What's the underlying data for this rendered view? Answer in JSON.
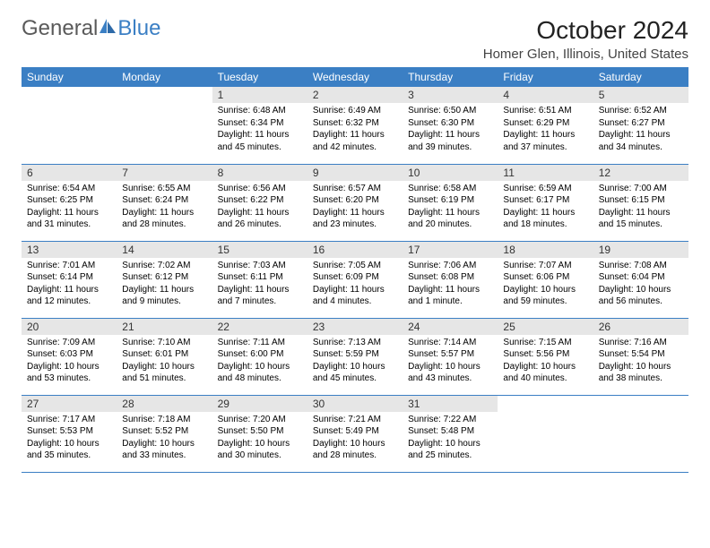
{
  "logo": {
    "text_gray": "General",
    "text_blue": "Blue"
  },
  "title": "October 2024",
  "location": "Homer Glen, Illinois, United States",
  "colors": {
    "header_bg": "#3b7fc4",
    "header_text": "#ffffff",
    "daynum_bg": "#e6e6e6",
    "cell_border": "#3b7fc4",
    "logo_gray": "#5a5a5a",
    "logo_blue": "#3b7fc4"
  },
  "day_headers": [
    "Sunday",
    "Monday",
    "Tuesday",
    "Wednesday",
    "Thursday",
    "Friday",
    "Saturday"
  ],
  "weeks": [
    [
      {
        "n": "",
        "sr": "",
        "ss": "",
        "dl": ""
      },
      {
        "n": "",
        "sr": "",
        "ss": "",
        "dl": ""
      },
      {
        "n": "1",
        "sr": "Sunrise: 6:48 AM",
        "ss": "Sunset: 6:34 PM",
        "dl": "Daylight: 11 hours and 45 minutes."
      },
      {
        "n": "2",
        "sr": "Sunrise: 6:49 AM",
        "ss": "Sunset: 6:32 PM",
        "dl": "Daylight: 11 hours and 42 minutes."
      },
      {
        "n": "3",
        "sr": "Sunrise: 6:50 AM",
        "ss": "Sunset: 6:30 PM",
        "dl": "Daylight: 11 hours and 39 minutes."
      },
      {
        "n": "4",
        "sr": "Sunrise: 6:51 AM",
        "ss": "Sunset: 6:29 PM",
        "dl": "Daylight: 11 hours and 37 minutes."
      },
      {
        "n": "5",
        "sr": "Sunrise: 6:52 AM",
        "ss": "Sunset: 6:27 PM",
        "dl": "Daylight: 11 hours and 34 minutes."
      }
    ],
    [
      {
        "n": "6",
        "sr": "Sunrise: 6:54 AM",
        "ss": "Sunset: 6:25 PM",
        "dl": "Daylight: 11 hours and 31 minutes."
      },
      {
        "n": "7",
        "sr": "Sunrise: 6:55 AM",
        "ss": "Sunset: 6:24 PM",
        "dl": "Daylight: 11 hours and 28 minutes."
      },
      {
        "n": "8",
        "sr": "Sunrise: 6:56 AM",
        "ss": "Sunset: 6:22 PM",
        "dl": "Daylight: 11 hours and 26 minutes."
      },
      {
        "n": "9",
        "sr": "Sunrise: 6:57 AM",
        "ss": "Sunset: 6:20 PM",
        "dl": "Daylight: 11 hours and 23 minutes."
      },
      {
        "n": "10",
        "sr": "Sunrise: 6:58 AM",
        "ss": "Sunset: 6:19 PM",
        "dl": "Daylight: 11 hours and 20 minutes."
      },
      {
        "n": "11",
        "sr": "Sunrise: 6:59 AM",
        "ss": "Sunset: 6:17 PM",
        "dl": "Daylight: 11 hours and 18 minutes."
      },
      {
        "n": "12",
        "sr": "Sunrise: 7:00 AM",
        "ss": "Sunset: 6:15 PM",
        "dl": "Daylight: 11 hours and 15 minutes."
      }
    ],
    [
      {
        "n": "13",
        "sr": "Sunrise: 7:01 AM",
        "ss": "Sunset: 6:14 PM",
        "dl": "Daylight: 11 hours and 12 minutes."
      },
      {
        "n": "14",
        "sr": "Sunrise: 7:02 AM",
        "ss": "Sunset: 6:12 PM",
        "dl": "Daylight: 11 hours and 9 minutes."
      },
      {
        "n": "15",
        "sr": "Sunrise: 7:03 AM",
        "ss": "Sunset: 6:11 PM",
        "dl": "Daylight: 11 hours and 7 minutes."
      },
      {
        "n": "16",
        "sr": "Sunrise: 7:05 AM",
        "ss": "Sunset: 6:09 PM",
        "dl": "Daylight: 11 hours and 4 minutes."
      },
      {
        "n": "17",
        "sr": "Sunrise: 7:06 AM",
        "ss": "Sunset: 6:08 PM",
        "dl": "Daylight: 11 hours and 1 minute."
      },
      {
        "n": "18",
        "sr": "Sunrise: 7:07 AM",
        "ss": "Sunset: 6:06 PM",
        "dl": "Daylight: 10 hours and 59 minutes."
      },
      {
        "n": "19",
        "sr": "Sunrise: 7:08 AM",
        "ss": "Sunset: 6:04 PM",
        "dl": "Daylight: 10 hours and 56 minutes."
      }
    ],
    [
      {
        "n": "20",
        "sr": "Sunrise: 7:09 AM",
        "ss": "Sunset: 6:03 PM",
        "dl": "Daylight: 10 hours and 53 minutes."
      },
      {
        "n": "21",
        "sr": "Sunrise: 7:10 AM",
        "ss": "Sunset: 6:01 PM",
        "dl": "Daylight: 10 hours and 51 minutes."
      },
      {
        "n": "22",
        "sr": "Sunrise: 7:11 AM",
        "ss": "Sunset: 6:00 PM",
        "dl": "Daylight: 10 hours and 48 minutes."
      },
      {
        "n": "23",
        "sr": "Sunrise: 7:13 AM",
        "ss": "Sunset: 5:59 PM",
        "dl": "Daylight: 10 hours and 45 minutes."
      },
      {
        "n": "24",
        "sr": "Sunrise: 7:14 AM",
        "ss": "Sunset: 5:57 PM",
        "dl": "Daylight: 10 hours and 43 minutes."
      },
      {
        "n": "25",
        "sr": "Sunrise: 7:15 AM",
        "ss": "Sunset: 5:56 PM",
        "dl": "Daylight: 10 hours and 40 minutes."
      },
      {
        "n": "26",
        "sr": "Sunrise: 7:16 AM",
        "ss": "Sunset: 5:54 PM",
        "dl": "Daylight: 10 hours and 38 minutes."
      }
    ],
    [
      {
        "n": "27",
        "sr": "Sunrise: 7:17 AM",
        "ss": "Sunset: 5:53 PM",
        "dl": "Daylight: 10 hours and 35 minutes."
      },
      {
        "n": "28",
        "sr": "Sunrise: 7:18 AM",
        "ss": "Sunset: 5:52 PM",
        "dl": "Daylight: 10 hours and 33 minutes."
      },
      {
        "n": "29",
        "sr": "Sunrise: 7:20 AM",
        "ss": "Sunset: 5:50 PM",
        "dl": "Daylight: 10 hours and 30 minutes."
      },
      {
        "n": "30",
        "sr": "Sunrise: 7:21 AM",
        "ss": "Sunset: 5:49 PM",
        "dl": "Daylight: 10 hours and 28 minutes."
      },
      {
        "n": "31",
        "sr": "Sunrise: 7:22 AM",
        "ss": "Sunset: 5:48 PM",
        "dl": "Daylight: 10 hours and 25 minutes."
      },
      {
        "n": "",
        "sr": "",
        "ss": "",
        "dl": ""
      },
      {
        "n": "",
        "sr": "",
        "ss": "",
        "dl": ""
      }
    ]
  ]
}
